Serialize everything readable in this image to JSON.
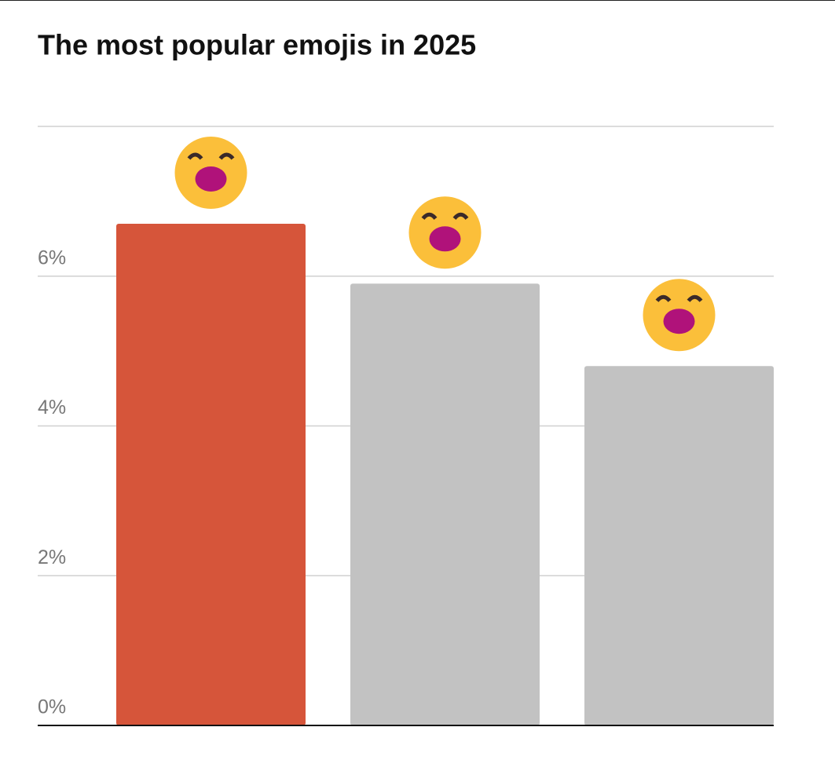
{
  "chart_data": {
    "type": "bar",
    "title": "The most popular emojis in 2025",
    "categories": [
      null,
      null,
      null
    ],
    "values": [
      6.7,
      5.9,
      4.8
    ],
    "colors": [
      "#d6553a",
      "#c2c2c2",
      "#c2c2c2"
    ],
    "ylim": [
      0,
      8
    ],
    "yticks": [
      {
        "value": 0,
        "label": "0%"
      },
      {
        "value": 2,
        "label": "2%"
      },
      {
        "value": 4,
        "label": "4%"
      },
      {
        "value": 6,
        "label": "6%"
      }
    ],
    "grid": true
  }
}
